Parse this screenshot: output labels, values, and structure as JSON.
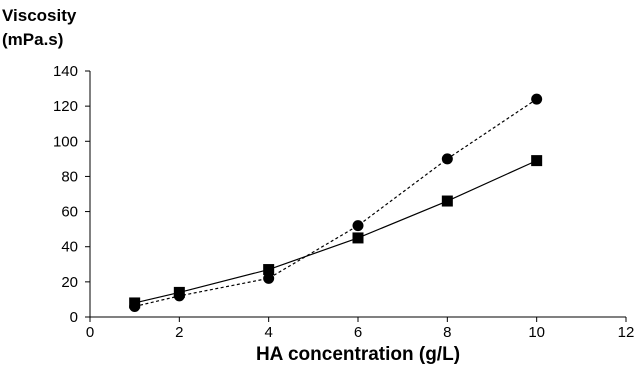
{
  "chart_data": {
    "type": "line",
    "title": "",
    "ylabel_lines": [
      "Viscosity",
      "(mPa.s)"
    ],
    "xlabel": "HA concentration (g/L)",
    "xlim": [
      0,
      12
    ],
    "ylim": [
      0,
      140
    ],
    "x_ticks": [
      0,
      2,
      4,
      6,
      8,
      10,
      12
    ],
    "y_ticks": [
      0,
      20,
      40,
      60,
      80,
      100,
      120,
      140
    ],
    "grid": false,
    "series": [
      {
        "marker": "square",
        "line_style": "solid",
        "color": "#000000",
        "x": [
          1,
          2,
          4,
          6,
          8,
          10
        ],
        "y": [
          8,
          14,
          27,
          45,
          66,
          89
        ]
      },
      {
        "marker": "circle",
        "line_style": "dashed",
        "color": "#000000",
        "x": [
          1,
          2,
          4,
          6,
          8,
          10
        ],
        "y": [
          6,
          12,
          22,
          52,
          90,
          124
        ]
      }
    ]
  }
}
